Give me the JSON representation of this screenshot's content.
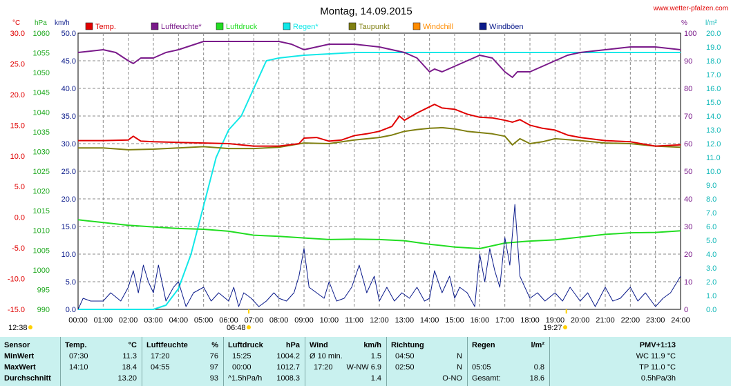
{
  "title": "Montag, 14.09.2015",
  "site": "www.wetter-pfalzen.com",
  "units": {
    "c": "°C",
    "hpa": "hPa",
    "kmh": "km/h",
    "pct": "%",
    "lm2": "l/m²"
  },
  "legend": [
    {
      "label": "Temp.",
      "color": "#e00000"
    },
    {
      "label": "Luftfeuchte*",
      "color": "#7a1a8a"
    },
    {
      "label": "Luftdruck",
      "color": "#22dd22"
    },
    {
      "label": "Regen*",
      "color": "#11e8e8"
    },
    {
      "label": "Taupunkt",
      "color": "#7f7f10"
    },
    {
      "label": "Windchill",
      "color": "#ff8c00"
    },
    {
      "label": "Windböen",
      "color": "#0a1a8a"
    }
  ],
  "sun": {
    "sunrise": "06:48",
    "sunset": "19:27",
    "moonrise": "12:38"
  },
  "chart_data": {
    "type": "line",
    "x_range": [
      "00:00",
      "24:00"
    ],
    "x_ticks": [
      "00:00",
      "01:00",
      "02:00",
      "03:00",
      "04:00",
      "05:00",
      "06:00",
      "07:00",
      "08:00",
      "09:00",
      "10:00",
      "11:00",
      "12:00",
      "13:00",
      "14:00",
      "15:00",
      "16:00",
      "17:00",
      "18:00",
      "19:00",
      "20:00",
      "21:00",
      "22:00",
      "23:00",
      "24:00"
    ],
    "axes": {
      "temp_c": {
        "label": "°C",
        "ylim": [
          -15,
          30
        ],
        "ticks": [
          "30.0",
          "25.0",
          "20.0",
          "15.0",
          "10.0",
          "5.0",
          "0.0",
          "-5.0",
          "-10.0",
          "-15.0"
        ]
      },
      "pressure_hpa": {
        "label": "hPa",
        "ylim": [
          990,
          1060
        ],
        "ticks": [
          "1060",
          "1055",
          "1050",
          "1045",
          "1040",
          "1035",
          "1030",
          "1025",
          "1020",
          "1015",
          "1010",
          "1005",
          "1000",
          "995",
          "990"
        ]
      },
      "wind_kmh": {
        "label": "km/h",
        "ylim": [
          0,
          50
        ],
        "ticks": [
          "50.0",
          "45.0",
          "40.0",
          "35.0",
          "30.0",
          "25.0",
          "20.0",
          "15.0",
          "10.0",
          "5.0",
          "0.0"
        ]
      },
      "humidity_pct": {
        "label": "%",
        "ylim": [
          0,
          100
        ],
        "ticks": [
          "100",
          "90",
          "80",
          "70",
          "60",
          "50",
          "40",
          "30",
          "20",
          "10",
          "0"
        ]
      },
      "rain_lm2": {
        "label": "l/m²",
        "ylim": [
          0,
          20
        ],
        "ticks": [
          "20.0",
          "19.0",
          "18.0",
          "17.0",
          "16.0",
          "15.0",
          "14.0",
          "13.0",
          "12.0",
          "11.0",
          "10.0",
          "9.0",
          "8.0",
          "7.0",
          "6.0",
          "5.0",
          "4.0",
          "3.0",
          "2.0",
          "1.0",
          "0.0"
        ]
      }
    },
    "grid": true,
    "legend_position": "top",
    "series": [
      {
        "name": "Temp.",
        "axis": "temp_c",
        "color": "#e00000",
        "x": [
          0,
          1,
          2,
          2.2,
          2.5,
          3,
          4,
          5,
          6,
          7,
          8,
          8.8,
          9,
          9.5,
          10,
          10.5,
          11,
          11.5,
          12,
          12.5,
          12.8,
          13,
          13.5,
          14,
          14.2,
          14.5,
          15,
          15.5,
          16,
          16.5,
          17,
          17.3,
          17.6,
          18,
          18.5,
          19,
          19.5,
          20,
          21,
          22,
          23,
          24
        ],
        "y": [
          12.5,
          12.5,
          12.6,
          13.2,
          12.4,
          12.3,
          12.2,
          12.1,
          12.0,
          11.6,
          11.6,
          12.0,
          12.9,
          13.0,
          12.4,
          12.6,
          13.3,
          13.6,
          14.0,
          14.8,
          16.5,
          15.8,
          17.0,
          18.0,
          18.4,
          17.8,
          17.6,
          16.8,
          16.3,
          16.2,
          15.8,
          15.5,
          15.9,
          15.0,
          14.5,
          14.2,
          13.4,
          13.0,
          12.5,
          12.3,
          11.6,
          11.8
        ]
      },
      {
        "name": "Luftfeuchte*",
        "axis": "humidity_pct",
        "color": "#7a1a8a",
        "x": [
          0,
          1,
          1.5,
          2,
          2.2,
          2.5,
          3,
          3.5,
          4,
          5,
          6,
          7,
          8,
          8.5,
          9,
          9.5,
          10,
          11,
          12,
          12.5,
          13,
          13.5,
          14,
          14.2,
          14.5,
          15,
          15.5,
          16,
          16.5,
          17,
          17.3,
          17.5,
          18,
          18.5,
          19,
          19.5,
          20,
          21,
          22,
          23,
          24
        ],
        "y": [
          93,
          94,
          93,
          90,
          89,
          91,
          91,
          93,
          94,
          97,
          97,
          97,
          97,
          96,
          94,
          95,
          96,
          96,
          95,
          94,
          93,
          91,
          86,
          87,
          86,
          88,
          90,
          92,
          91,
          86,
          84,
          86,
          86,
          88,
          90,
          92,
          93,
          94,
          95,
          95,
          94
        ]
      },
      {
        "name": "Luftdruck",
        "axis": "pressure_hpa",
        "color": "#22dd22",
        "x": [
          0,
          1,
          2,
          3,
          4,
          5,
          6,
          7,
          8,
          9,
          10,
          11,
          12,
          13,
          14,
          15,
          16,
          17,
          18,
          19,
          20,
          21,
          22,
          23,
          24
        ],
        "y": [
          1012.7,
          1012.0,
          1011.3,
          1010.9,
          1010.5,
          1010.3,
          1009.8,
          1008.8,
          1008.5,
          1008.1,
          1007.7,
          1007.8,
          1007.7,
          1007.4,
          1006.5,
          1005.8,
          1005.4,
          1006.8,
          1007.3,
          1007.6,
          1008.3,
          1009.0,
          1009.4,
          1009.5,
          1009.9
        ]
      },
      {
        "name": "Regen*",
        "axis": "rain_lm2",
        "color": "#11e8e8",
        "x": [
          0,
          3,
          3.5,
          4,
          4.5,
          5,
          5.5,
          6,
          6.5,
          7,
          7.5,
          8,
          9,
          11,
          24
        ],
        "y": [
          0,
          0,
          0.3,
          1.5,
          4.0,
          7.5,
          11.0,
          13.0,
          14.0,
          16.0,
          18.0,
          18.2,
          18.4,
          18.6,
          18.6
        ]
      },
      {
        "name": "Taupunkt",
        "axis": "temp_c",
        "color": "#7f7f10",
        "x": [
          0,
          1,
          2,
          3,
          4,
          5,
          6,
          7,
          8,
          9,
          10,
          11,
          12,
          12.5,
          13,
          13.5,
          14,
          14.5,
          15,
          15.5,
          16,
          16.5,
          17,
          17.3,
          17.6,
          18,
          18.5,
          19,
          20,
          21,
          22,
          23,
          24
        ],
        "y": [
          11.3,
          11.3,
          11.0,
          11.1,
          11.3,
          11.5,
          11.2,
          11.2,
          11.4,
          12.1,
          12.0,
          12.6,
          13.0,
          13.4,
          14.0,
          14.3,
          14.5,
          14.6,
          14.4,
          14.0,
          13.8,
          13.6,
          13.2,
          11.8,
          12.8,
          12.0,
          12.3,
          12.8,
          12.5,
          12.1,
          12.0,
          11.6,
          11.4
        ]
      },
      {
        "name": "Windböen",
        "axis": "wind_kmh",
        "color": "#0a1a8a",
        "x": [
          0,
          0.2,
          0.5,
          1,
          1.3,
          1.7,
          2,
          2.2,
          2.4,
          2.6,
          2.8,
          3,
          3.2,
          3.5,
          3.8,
          4,
          4.3,
          4.6,
          5,
          5.3,
          5.6,
          6,
          6.2,
          6.4,
          6.6,
          6.9,
          7.2,
          7.5,
          7.8,
          8,
          8.3,
          8.6,
          8.8,
          9,
          9.2,
          9.5,
          9.8,
          10,
          10.3,
          10.6,
          10.9,
          11.2,
          11.5,
          11.8,
          12,
          12.3,
          12.6,
          12.9,
          13.2,
          13.5,
          13.8,
          14,
          14.2,
          14.5,
          14.8,
          15,
          15.2,
          15.5,
          15.8,
          16,
          16.2,
          16.4,
          16.6,
          16.8,
          17,
          17.2,
          17.4,
          17.6,
          17.8,
          18,
          18.3,
          18.6,
          19,
          19.3,
          19.6,
          20,
          20.3,
          20.6,
          21,
          21.3,
          21.6,
          22,
          22.3,
          22.6,
          23,
          23.3,
          23.6,
          24
        ],
        "y": [
          0,
          2.0,
          1.5,
          1.5,
          3.0,
          1.5,
          4.0,
          7.0,
          3.0,
          8.0,
          5.0,
          3.0,
          8.0,
          1.5,
          4.0,
          5.0,
          0.5,
          3.0,
          4.0,
          1.5,
          3.0,
          1.5,
          4.0,
          0.5,
          3.0,
          2.0,
          0.5,
          1.5,
          3.0,
          2.0,
          1.5,
          3.0,
          6.0,
          11.0,
          4.0,
          3.0,
          2.0,
          5.0,
          1.5,
          2.0,
          4.0,
          8.0,
          3.0,
          6.0,
          1.5,
          4.0,
          1.5,
          3.0,
          2.0,
          4.0,
          1.5,
          2.0,
          7.0,
          3.0,
          6.0,
          2.0,
          4.0,
          3.0,
          0.5,
          10.0,
          5.0,
          11.0,
          7.0,
          4.0,
          13.0,
          8.0,
          19.0,
          6.0,
          4.0,
          2.0,
          3.0,
          1.5,
          3.0,
          1.5,
          4.0,
          1.5,
          3.0,
          0.5,
          4.0,
          1.5,
          2.0,
          4.0,
          1.5,
          3.0,
          0.5,
          2.0,
          3.0,
          6.0
        ]
      }
    ]
  },
  "stats": {
    "sensor": {
      "h": "Sensor",
      "min": "MinWert",
      "max": "MaxWert",
      "avg": "Durchschnitt"
    },
    "temp": {
      "h": "Temp.",
      "u": "°C",
      "min_t": "07:30",
      "min_v": "11.3",
      "max_t": "14:10",
      "max_v": "18.4",
      "avg_v": "13.20"
    },
    "hum": {
      "h": "Luftfeuchte",
      "u": "%",
      "min_t": "17:20",
      "min_v": "76",
      "max_t": "04:55",
      "max_v": "97",
      "avg_v": "93"
    },
    "press": {
      "h": "Luftdruck",
      "u": "hPa",
      "min_t": "15:25",
      "min_v": "1004.2",
      "max_t": "00:00",
      "max_v": "1012.7",
      "avg_l": "^1.5hPa/h",
      "avg_v": "1008.3"
    },
    "wind": {
      "h": "Wind",
      "u": "km/h",
      "min_t": "Ø 10 min.",
      "min_v": "1.5",
      "max_t": "17:20",
      "max_v": "W-NW 6.9",
      "avg_v": "1.4"
    },
    "dir": {
      "h": "Richtung",
      "min_t": "04:50",
      "min_v": "N",
      "max_t": "02:50",
      "max_v": "N",
      "avg_v": "O-NO"
    },
    "rain": {
      "h": "Regen",
      "u": "l/m²",
      "max_t": "05:05",
      "max_v": "0.8",
      "avg_l": "Gesamt:",
      "avg_v": "18.6"
    },
    "pmv": {
      "h": "PMV+1:13",
      "l1": "WC 11.9 °C",
      "l2": "TP 11.0 °C",
      "l3": "0.5hPa/3h"
    }
  }
}
